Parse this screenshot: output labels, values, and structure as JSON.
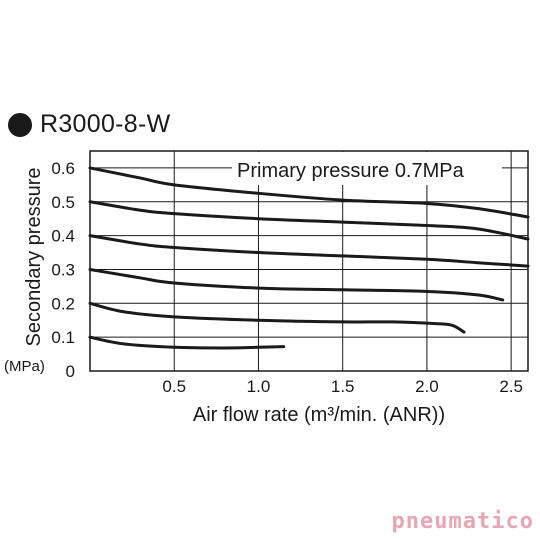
{
  "header": {
    "title": "R3000-8-W"
  },
  "logo": {
    "text": "pneumatico"
  },
  "chart_data": {
    "type": "line",
    "title": "R3000-8-W",
    "annotation": "Primary pressure 0.7MPa",
    "xlabel": "Air flow rate (m³/min. (ANR))",
    "ylabel": "Secondary pressure",
    "yunit": "(MPa)",
    "xlim": [
      0,
      2.6
    ],
    "ylim": [
      0,
      0.65
    ],
    "xticks": [
      0.5,
      1.0,
      1.5,
      2.0,
      2.5
    ],
    "xtick_labels": [
      "0.5",
      "1.0",
      "1.5",
      "2.0",
      "2.5"
    ],
    "yticks": [
      0,
      0.1,
      0.2,
      0.3,
      0.4,
      0.5,
      0.6
    ],
    "ytick_labels": [
      "0",
      "0.1",
      "0.2",
      "0.3",
      "0.4",
      "0.5",
      "0.6"
    ],
    "grid": true,
    "series": [
      {
        "x": [
          0,
          0.2,
          0.5,
          0.8,
          1.0,
          1.15
        ],
        "y": [
          0.1,
          0.08,
          0.07,
          0.068,
          0.07,
          0.072
        ]
      },
      {
        "x": [
          0,
          0.2,
          0.5,
          1.0,
          1.5,
          1.8,
          2.05,
          2.15,
          2.22
        ],
        "y": [
          0.2,
          0.175,
          0.16,
          0.15,
          0.145,
          0.145,
          0.14,
          0.135,
          0.115
        ]
      },
      {
        "x": [
          0,
          0.3,
          0.5,
          1.0,
          1.5,
          2.0,
          2.3,
          2.45
        ],
        "y": [
          0.3,
          0.275,
          0.26,
          0.245,
          0.24,
          0.235,
          0.225,
          0.21
        ]
      },
      {
        "x": [
          0,
          0.3,
          0.5,
          1.0,
          1.5,
          2.0,
          2.3,
          2.6
        ],
        "y": [
          0.4,
          0.375,
          0.365,
          0.35,
          0.34,
          0.33,
          0.32,
          0.31
        ]
      },
      {
        "x": [
          0,
          0.3,
          0.5,
          1.0,
          1.5,
          2.0,
          2.3,
          2.6
        ],
        "y": [
          0.5,
          0.475,
          0.465,
          0.45,
          0.44,
          0.43,
          0.42,
          0.39
        ]
      },
      {
        "x": [
          0,
          0.3,
          0.5,
          1.0,
          1.5,
          2.0,
          2.3,
          2.6
        ],
        "y": [
          0.6,
          0.57,
          0.55,
          0.525,
          0.505,
          0.495,
          0.48,
          0.455
        ]
      }
    ]
  }
}
